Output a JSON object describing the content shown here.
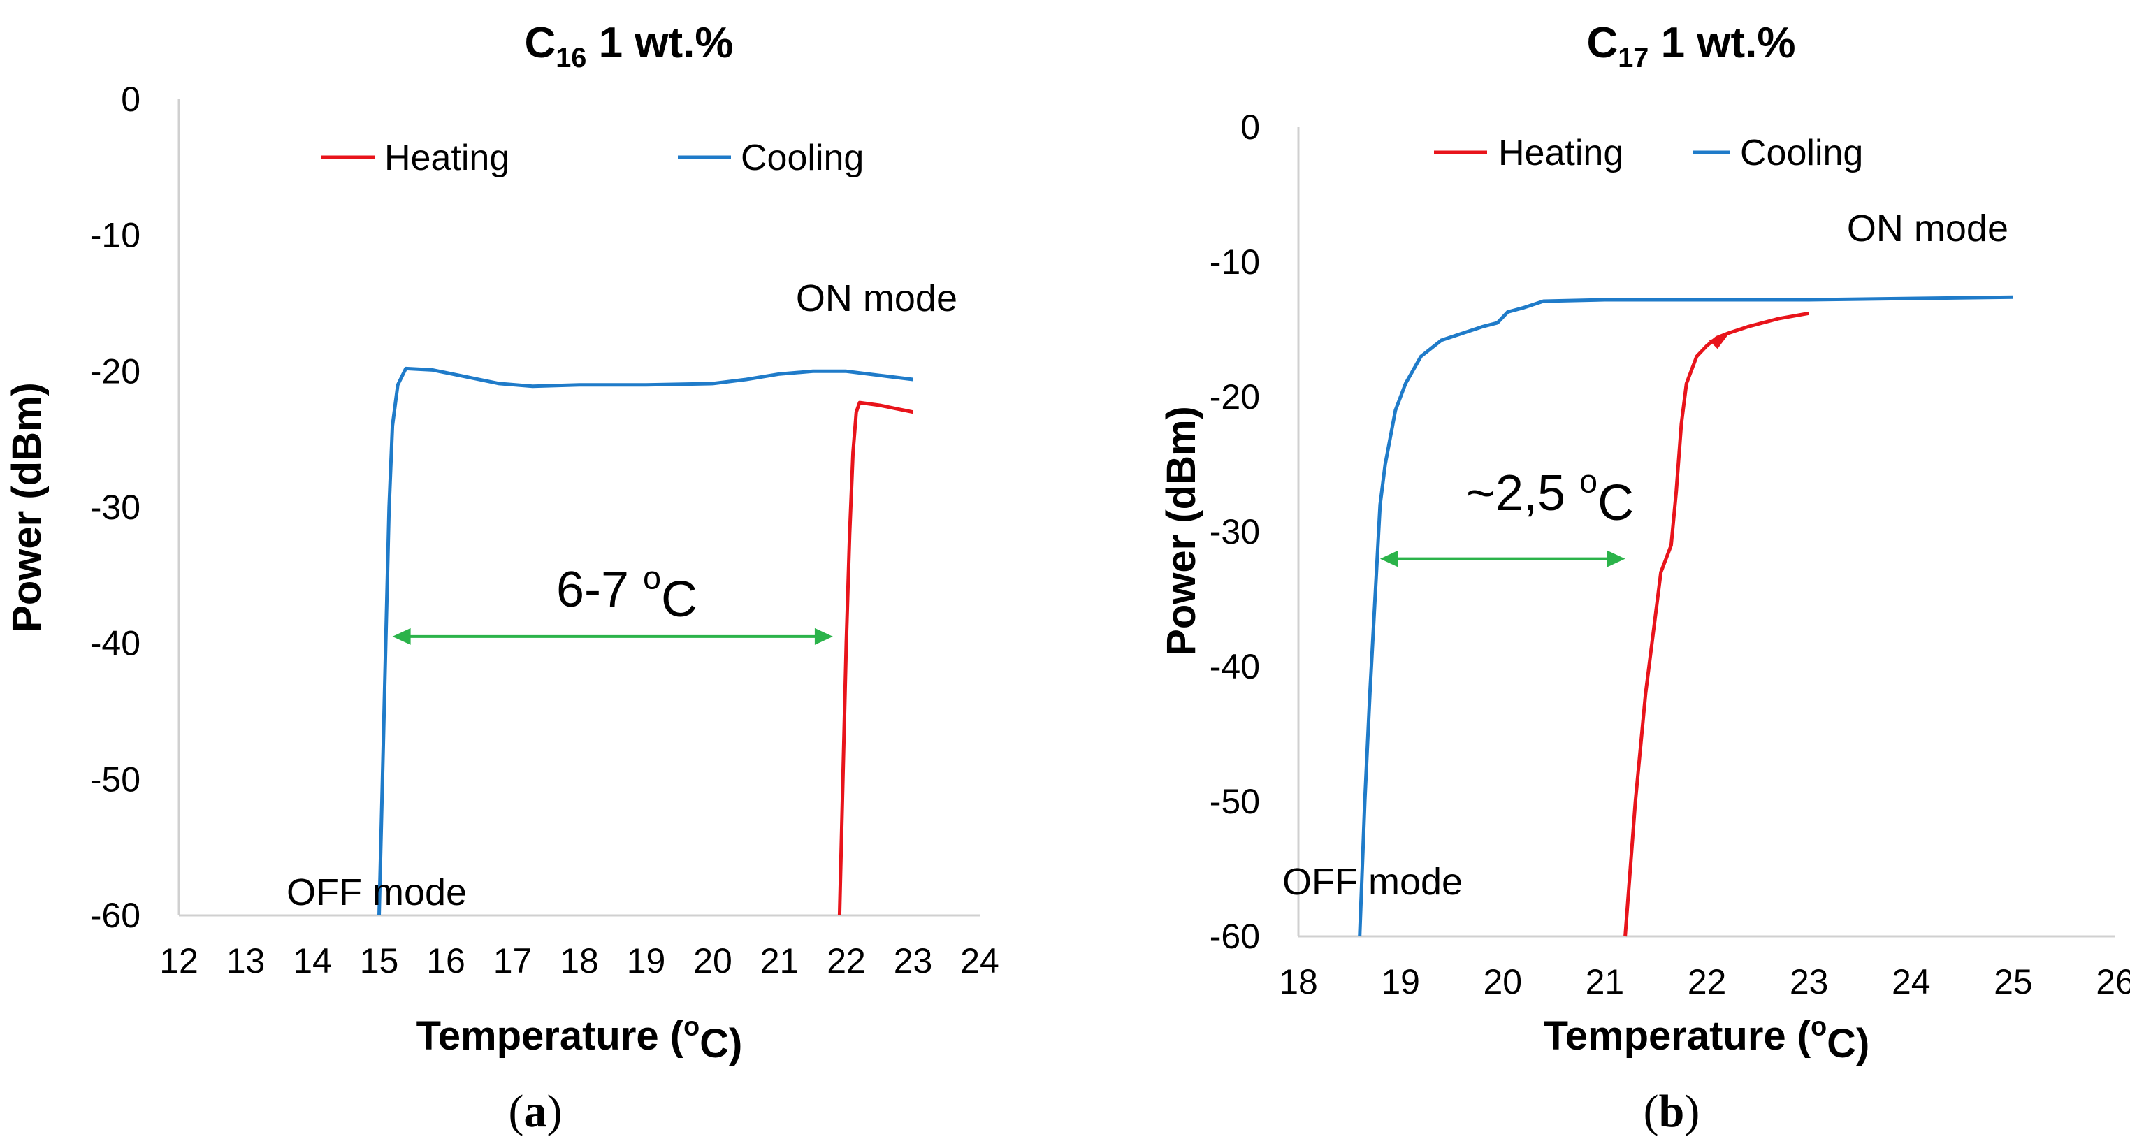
{
  "colors": {
    "heating": "#E8141B",
    "cooling": "#1F7BC9",
    "gap_arrow": "#2BB34A",
    "axis": "#d0d0d0"
  },
  "chart_data": [
    {
      "type": "line",
      "title": "C",
      "title_sub": "16",
      "title_rest": "1 wt.%",
      "xlabel": "Temperature (oC)",
      "ylabel": "Power (dBm)",
      "xlim": [
        12,
        24
      ],
      "ylim": [
        -60,
        0
      ],
      "x_ticks": [
        "12",
        "13",
        "14",
        "15",
        "16",
        "17",
        "18",
        "19",
        "20",
        "21",
        "22",
        "23",
        "24"
      ],
      "y_ticks": [
        "0",
        "-10",
        "-20",
        "-30",
        "-40",
        "-50",
        "-60"
      ],
      "legend": {
        "position": "top",
        "entries": [
          "Heating",
          "Cooling"
        ]
      },
      "annotations": {
        "on_mode": "ON mode",
        "off_mode": "OFF mode",
        "gap": "6-7 oC"
      },
      "gap_arrow": {
        "x1": 15.2,
        "x2": 21.8,
        "y": -39.5
      },
      "caption": "(a)",
      "series": [
        {
          "name": "Heating",
          "points": [
            [
              21.9,
              -60
            ],
            [
              21.95,
              -50
            ],
            [
              22.0,
              -40
            ],
            [
              22.05,
              -32
            ],
            [
              22.1,
              -26
            ],
            [
              22.15,
              -23
            ],
            [
              22.2,
              -22.3
            ],
            [
              22.5,
              -22.5
            ],
            [
              23.0,
              -23.0
            ]
          ]
        },
        {
          "name": "Cooling",
          "points": [
            [
              15.0,
              -60
            ],
            [
              15.05,
              -50
            ],
            [
              15.1,
              -40
            ],
            [
              15.15,
              -30
            ],
            [
              15.2,
              -24
            ],
            [
              15.28,
              -21
            ],
            [
              15.4,
              -19.8
            ],
            [
              15.8,
              -19.9
            ],
            [
              16.2,
              -20.3
            ],
            [
              16.8,
              -20.9
            ],
            [
              17.3,
              -21.1
            ],
            [
              18.0,
              -21.0
            ],
            [
              19.0,
              -21.0
            ],
            [
              20.0,
              -20.9
            ],
            [
              20.5,
              -20.6
            ],
            [
              21.0,
              -20.2
            ],
            [
              21.5,
              -20.0
            ],
            [
              22.0,
              -20.0
            ],
            [
              22.5,
              -20.3
            ],
            [
              23.0,
              -20.6
            ]
          ]
        }
      ]
    },
    {
      "type": "line",
      "title": "C",
      "title_sub": "17",
      "title_rest": "1 wt.%",
      "xlabel": "Temperature (oC)",
      "ylabel": "Power (dBm)",
      "xlim": [
        18,
        26
      ],
      "ylim": [
        -60,
        0
      ],
      "x_ticks": [
        "18",
        "19",
        "20",
        "21",
        "22",
        "23",
        "24",
        "25",
        "26"
      ],
      "y_ticks": [
        "0",
        "-10",
        "-20",
        "-30",
        "-40",
        "-50",
        "-60"
      ],
      "legend": {
        "position": "top",
        "entries": [
          "Heating",
          "Cooling"
        ]
      },
      "annotations": {
        "on_mode": "ON mode",
        "off_mode": "OFF mode",
        "gap": "~2,5 oC"
      },
      "gap_arrow": {
        "x1": 18.8,
        "x2": 21.2,
        "y": -32
      },
      "caption": "(b)",
      "series": [
        {
          "name": "Heating",
          "points": [
            [
              21.2,
              -60
            ],
            [
              21.3,
              -50
            ],
            [
              21.4,
              -42
            ],
            [
              21.5,
              -36
            ],
            [
              21.55,
              -33
            ],
            [
              21.65,
              -31
            ],
            [
              21.7,
              -27
            ],
            [
              21.75,
              -22
            ],
            [
              21.8,
              -19
            ],
            [
              21.9,
              -17
            ],
            [
              22.0,
              -16.2
            ],
            [
              22.1,
              -15.6
            ],
            [
              22.2,
              -15.3
            ],
            [
              22.4,
              -14.8
            ],
            [
              22.7,
              -14.2
            ],
            [
              23.0,
              -13.8
            ]
          ]
        },
        {
          "name": "Cooling",
          "points": [
            [
              18.6,
              -60
            ],
            [
              18.65,
              -50
            ],
            [
              18.7,
              -42
            ],
            [
              18.75,
              -35
            ],
            [
              18.8,
              -28
            ],
            [
              18.85,
              -25
            ],
            [
              18.95,
              -21
            ],
            [
              19.05,
              -19
            ],
            [
              19.2,
              -17
            ],
            [
              19.4,
              -15.8
            ],
            [
              19.6,
              -15.3
            ],
            [
              19.8,
              -14.8
            ],
            [
              19.95,
              -14.5
            ],
            [
              20.05,
              -13.7
            ],
            [
              20.2,
              -13.4
            ],
            [
              20.4,
              -12.9
            ],
            [
              21.0,
              -12.8
            ],
            [
              22.0,
              -12.8
            ],
            [
              23.0,
              -12.8
            ],
            [
              24.0,
              -12.7
            ],
            [
              25.0,
              -12.6
            ]
          ]
        }
      ]
    }
  ]
}
